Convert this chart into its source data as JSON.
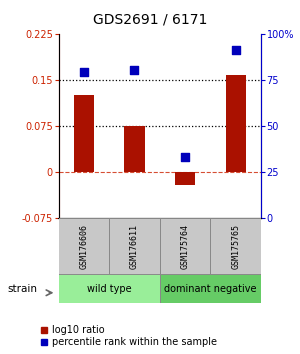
{
  "title": "GDS2691 / 6171",
  "samples": [
    "GSM176606",
    "GSM176611",
    "GSM175764",
    "GSM175765"
  ],
  "log10_ratio": [
    0.125,
    0.075,
    -0.022,
    0.158
  ],
  "percentile_rank": [
    79,
    80,
    33,
    91
  ],
  "groups": [
    {
      "label": "wild type",
      "samples": [
        0,
        1
      ],
      "color": "#99EE99"
    },
    {
      "label": "dominant negative",
      "samples": [
        2,
        3
      ],
      "color": "#66CC66"
    }
  ],
  "ylim_left": [
    -0.075,
    0.225
  ],
  "ylim_right": [
    0,
    100
  ],
  "yticks_left": [
    -0.075,
    0,
    0.075,
    0.15,
    0.225
  ],
  "yticks_right": [
    0,
    25,
    50,
    75,
    100
  ],
  "ytick_labels_left": [
    "-0.075",
    "0",
    "0.075",
    "0.15",
    "0.225"
  ],
  "ytick_labels_right": [
    "0",
    "25",
    "50",
    "75",
    "100%"
  ],
  "hlines": [
    0.075,
    0.15
  ],
  "bar_color": "#AA1100",
  "dot_color": "#0000BB",
  "bar_width": 0.4,
  "dot_size": 40,
  "legend_red_label": "log10 ratio",
  "legend_blue_label": "percentile rank within the sample",
  "strain_label": "strain"
}
